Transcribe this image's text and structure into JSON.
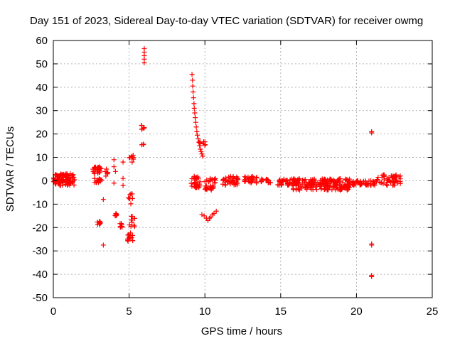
{
  "chart_data": {
    "type": "scatter",
    "title": "Day 151 of 2023, Sidereal Day-to-day VTEC variation (SDTVAR) for receiver owmg",
    "xlabel": "GPS time / hours",
    "ylabel": "SDTVAR / TECUs",
    "xlim": [
      0,
      25
    ],
    "ylim": [
      -50,
      60
    ],
    "xticks": [
      "0",
      "5",
      "10",
      "15",
      "20",
      "25"
    ],
    "yticks": [
      "-50",
      "-40",
      "-30",
      "-20",
      "-10",
      "0",
      "10",
      "20",
      "30",
      "40",
      "50",
      "60"
    ],
    "grid": true,
    "marker": "plus",
    "color": "#ff0000",
    "series": [
      {
        "name": "SDTVAR",
        "clusters": [
          {
            "x": [
              0.0,
              1.4
            ],
            "y": [
              -2,
              3
            ],
            "n": 110
          },
          {
            "x": [
              2.6,
              3.2
            ],
            "y": [
              3,
              6
            ],
            "n": 28
          },
          {
            "x": [
              2.7,
              3.2
            ],
            "y": [
              -1,
              1
            ],
            "n": 18
          },
          {
            "x": [
              3.4,
              3.6
            ],
            "y": [
              2,
              4
            ],
            "n": 5
          },
          {
            "x": [
              2.9,
              3.1
            ],
            "y": [
              -19,
              -17
            ],
            "n": 9
          },
          {
            "x": [
              4.0,
              4.2
            ],
            "y": [
              -15,
              -14
            ],
            "n": 6
          },
          {
            "x": [
              4.4,
              4.6
            ],
            "y": [
              -20,
              -18
            ],
            "n": 8
          },
          {
            "x": [
              4.9,
              5.3
            ],
            "y": [
              -26,
              -22
            ],
            "n": 14
          },
          {
            "x": [
              5.0,
              5.4
            ],
            "y": [
              -20,
              -15
            ],
            "n": 10
          },
          {
            "x": [
              4.9,
              5.3
            ],
            "y": [
              -10,
              -5
            ],
            "n": 8
          },
          {
            "x": [
              4.9,
              5.3
            ],
            "y": [
              9,
              11
            ],
            "n": 7
          },
          {
            "x": [
              5.8,
              6.0
            ],
            "y": [
              22,
              24
            ],
            "n": 7
          },
          {
            "x": [
              5.8,
              6.0
            ],
            "y": [
              15,
              16
            ],
            "n": 4
          },
          {
            "x": [
              9.1,
              9.7
            ],
            "y": [
              -3,
              2
            ],
            "n": 30
          },
          {
            "x": [
              9.6,
              10.1
            ],
            "y": [
              15,
              17
            ],
            "n": 8
          },
          {
            "x": [
              9.9,
              10.6
            ],
            "y": [
              -4,
              -2
            ],
            "n": 18
          },
          {
            "x": [
              10.0,
              10.7
            ],
            "y": [
              -1,
              1
            ],
            "n": 14
          },
          {
            "x": [
              11.1,
              12.2
            ],
            "y": [
              -2,
              2
            ],
            "n": 40
          },
          {
            "x": [
              12.6,
              13.5
            ],
            "y": [
              -1,
              2
            ],
            "n": 28
          },
          {
            "x": [
              13.7,
              14.4
            ],
            "y": [
              -1,
              1
            ],
            "n": 14
          },
          {
            "x": [
              14.8,
              16.2
            ],
            "y": [
              -2,
              1
            ],
            "n": 45
          },
          {
            "x": [
              15.8,
              17.8
            ],
            "y": [
              -4,
              1
            ],
            "n": 90
          },
          {
            "x": [
              17.8,
              19.6
            ],
            "y": [
              -4,
              1
            ],
            "n": 110
          },
          {
            "x": [
              19.6,
              21.2
            ],
            "y": [
              -2,
              0
            ],
            "n": 50
          },
          {
            "x": [
              21.2,
              22.9
            ],
            "y": [
              -2,
              3
            ],
            "n": 60
          }
        ],
        "points": [
          {
            "x": 3.3,
            "y": -27.5
          },
          {
            "x": 3.3,
            "y": -8
          },
          {
            "x": 3.5,
            "y": 5
          },
          {
            "x": 4.0,
            "y": 9
          },
          {
            "x": 4.0,
            "y": 6
          },
          {
            "x": 4.1,
            "y": 4
          },
          {
            "x": 4.0,
            "y": -1
          },
          {
            "x": 4.6,
            "y": 8
          },
          {
            "x": 4.6,
            "y": 1
          },
          {
            "x": 4.6,
            "y": -2
          },
          {
            "x": 5.2,
            "y": 8
          },
          {
            "x": 6.0,
            "y": 56.5
          },
          {
            "x": 6.0,
            "y": 55
          },
          {
            "x": 6.0,
            "y": 53.5
          },
          {
            "x": 6.0,
            "y": 52
          },
          {
            "x": 6.0,
            "y": 50.5
          },
          {
            "x": 9.15,
            "y": 45.5
          },
          {
            "x": 9.18,
            "y": 43
          },
          {
            "x": 9.2,
            "y": 40.5
          },
          {
            "x": 9.22,
            "y": 38
          },
          {
            "x": 9.25,
            "y": 35.5
          },
          {
            "x": 9.28,
            "y": 33
          },
          {
            "x": 9.3,
            "y": 31
          },
          {
            "x": 9.33,
            "y": 29
          },
          {
            "x": 9.36,
            "y": 27
          },
          {
            "x": 9.4,
            "y": 25
          },
          {
            "x": 9.43,
            "y": 23
          },
          {
            "x": 9.47,
            "y": 21
          },
          {
            "x": 9.5,
            "y": 19.5
          },
          {
            "x": 9.55,
            "y": 18
          },
          {
            "x": 9.6,
            "y": 16.5
          },
          {
            "x": 9.65,
            "y": 15
          },
          {
            "x": 9.7,
            "y": 13.5
          },
          {
            "x": 9.75,
            "y": 12.5
          },
          {
            "x": 9.8,
            "y": 11.5
          },
          {
            "x": 9.85,
            "y": 10.5
          },
          {
            "x": 9.8,
            "y": -14.5
          },
          {
            "x": 9.95,
            "y": -15
          },
          {
            "x": 10.1,
            "y": -16
          },
          {
            "x": 10.2,
            "y": -17
          },
          {
            "x": 10.3,
            "y": -16
          },
          {
            "x": 10.4,
            "y": -15.5
          },
          {
            "x": 10.5,
            "y": -14.5
          },
          {
            "x": 10.6,
            "y": -14
          },
          {
            "x": 10.75,
            "y": -13
          },
          {
            "x": 21.0,
            "y": 21
          },
          {
            "x": 21.0,
            "y": 20.5
          },
          {
            "x": 21.0,
            "y": -27
          },
          {
            "x": 21.0,
            "y": -27.5
          },
          {
            "x": 21.0,
            "y": -40.5
          },
          {
            "x": 21.0,
            "y": -41
          }
        ]
      }
    ]
  }
}
